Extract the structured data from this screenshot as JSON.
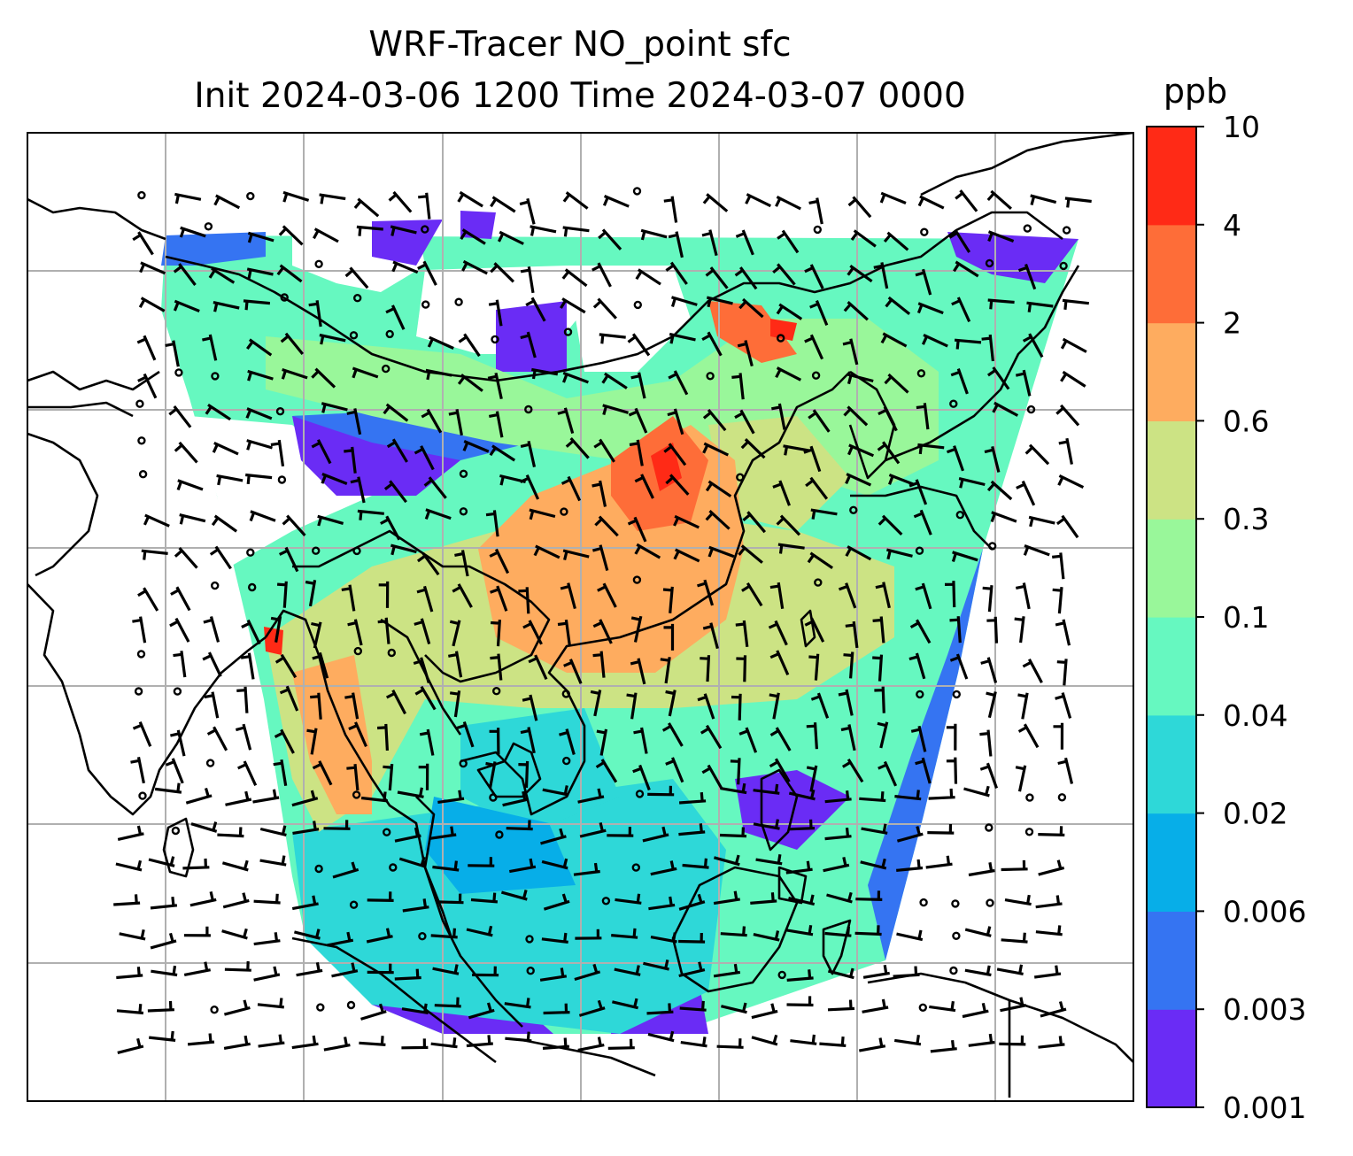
{
  "title": {
    "line1": "WRF-Tracer NO_point sfc",
    "line2": "Init 2024-03-06 1200 Time 2024-03-07 0000"
  },
  "colorbar": {
    "unit": "ppb",
    "tick_labels": [
      "0.001",
      "0.003",
      "0.006",
      "0.02",
      "0.04",
      "0.1",
      "0.3",
      "0.6",
      "2",
      "4",
      "10"
    ],
    "colors": [
      "#6a2cf5",
      "#3574f2",
      "#07aee8",
      "#2ed8d8",
      "#66f8c0",
      "#99f79a",
      "#cce384",
      "#feac5f",
      "#fe6d38",
      "#ff2a16"
    ]
  },
  "map": {
    "gridlines": true,
    "field_type": "filled contour",
    "overlay": "wind barbs",
    "coastlines": true
  }
}
